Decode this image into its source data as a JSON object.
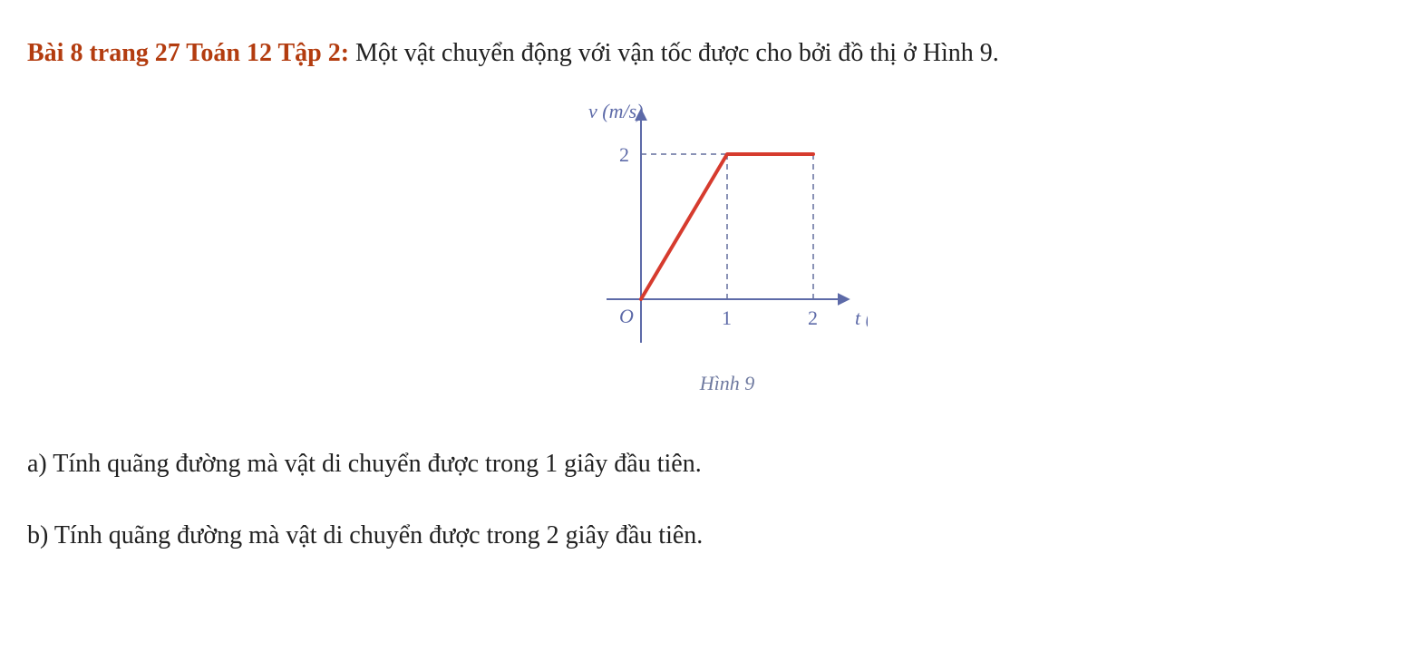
{
  "heading": {
    "title": "Bài 8 trang 27 Toán 12 Tập 2:",
    "statement": " Một vật chuyển động với vận tốc được cho bởi đồ thị ở Hình 9."
  },
  "figure": {
    "type": "line",
    "caption": "Hình 9",
    "y_axis_label": "v (m/s)",
    "x_axis_label": "t (s)",
    "origin_label": "O",
    "x_ticks": [
      "1",
      "2"
    ],
    "y_ticks": [
      "2"
    ],
    "axis_color": "#5d6aa8",
    "label_color": "#5d6aa8",
    "text_color": "#5d6aa8",
    "caption_color": "#6f7aa0",
    "guide_color": "#636e9e",
    "series_color": "#d63b2e",
    "series_width": 4,
    "axis_width": 2,
    "guide_dash": "6,5",
    "label_fontsize": 22,
    "xlim": [
      -0.4,
      2.4
    ],
    "ylim": [
      -0.6,
      2.6
    ],
    "series_points": [
      [
        0,
        0
      ],
      [
        1,
        2
      ],
      [
        2,
        2
      ]
    ],
    "guides": [
      {
        "from": [
          0,
          2
        ],
        "to": [
          1,
          2
        ]
      },
      {
        "from": [
          1,
          0
        ],
        "to": [
          1,
          2
        ]
      },
      {
        "from": [
          2,
          0
        ],
        "to": [
          2,
          2
        ]
      }
    ]
  },
  "questions": {
    "a": "a) Tính quãng đường mà vật di chuyển được trong 1 giây đầu tiên.",
    "b": "b) Tính quãng đường mà vật di chuyển được trong 2 giây đầu tiên."
  }
}
